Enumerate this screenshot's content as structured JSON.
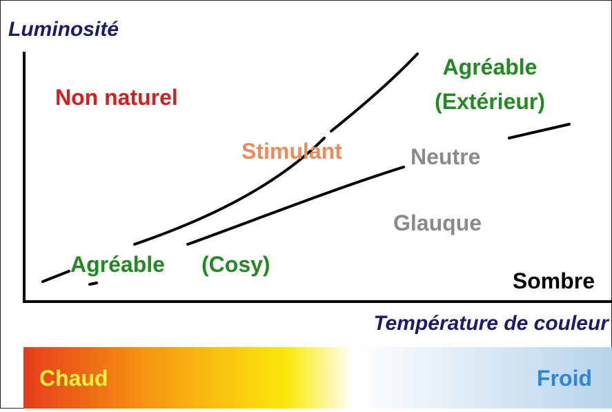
{
  "y_axis_label": "Luminosité",
  "x_axis_label": "Température de couleur",
  "regions": {
    "unnatural": "Non naturel",
    "stimulating": "Stimulant",
    "pleasant_outdoor": [
      "Agréable",
      "(Extérieur)"
    ],
    "neutral": "Neutre",
    "gloomy": "Glauque",
    "pleasant_cosy": [
      "Agréable",
      "(Cosy)"
    ],
    "dark": "Sombre"
  },
  "scale": {
    "warm": "Chaud",
    "cold": "Froid"
  }
}
